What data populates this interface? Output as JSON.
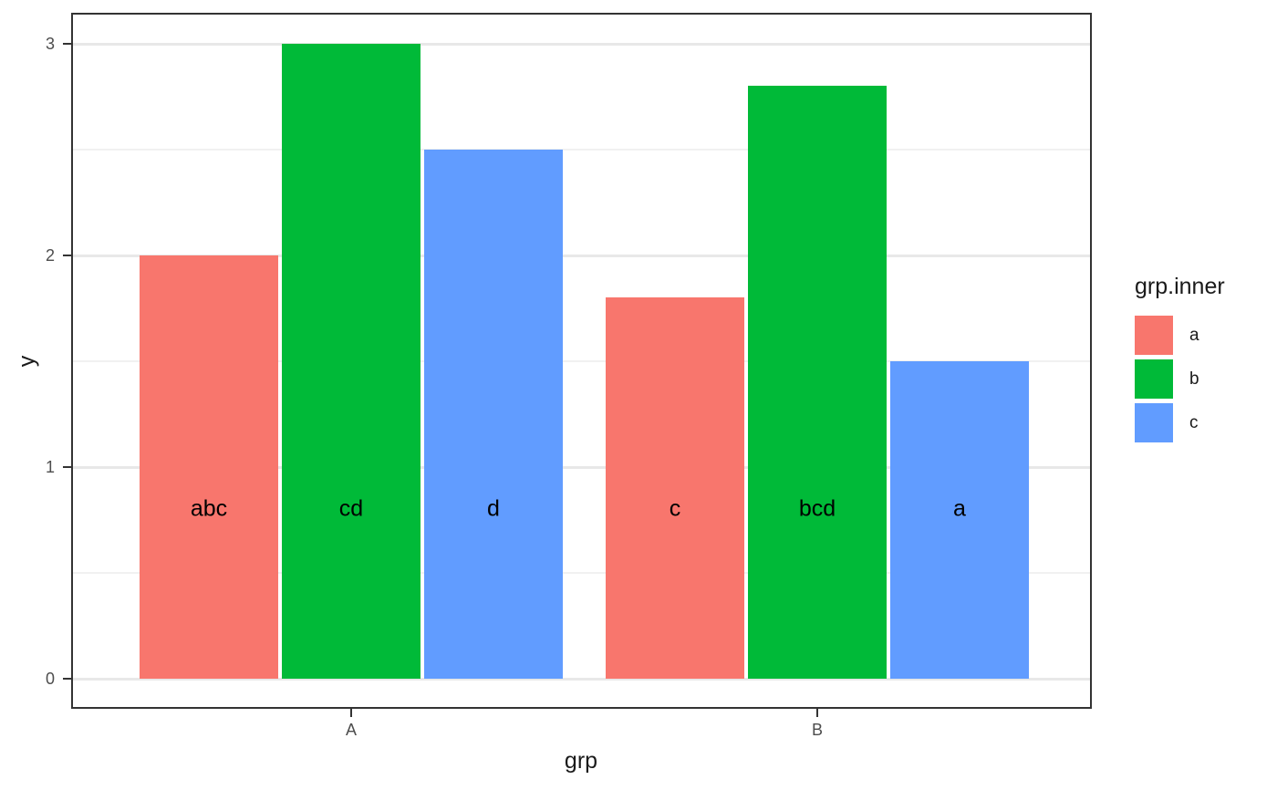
{
  "chart_data": {
    "type": "bar",
    "title": "",
    "xlabel": "grp",
    "ylabel": "y",
    "categories": [
      "A",
      "B"
    ],
    "series": [
      {
        "name": "a",
        "color": "#F8766D",
        "values": [
          2.0,
          1.8
        ],
        "bar_labels": [
          "abc",
          "c"
        ]
      },
      {
        "name": "b",
        "color": "#00BA38",
        "values": [
          3.0,
          2.8
        ],
        "bar_labels": [
          "cd",
          "bcd"
        ]
      },
      {
        "name": "c",
        "color": "#619CFF",
        "values": [
          2.5,
          1.5
        ],
        "bar_labels": [
          "d",
          "a"
        ]
      }
    ],
    "bar_label_y": 0.8,
    "y_ticks": [
      "0",
      "1",
      "2",
      "3"
    ],
    "y_minor_gridlines": [
      0.5,
      1.5,
      2.5
    ],
    "ylim": [
      -0.15,
      3.15
    ],
    "grid": "major+minor",
    "legend_position": "right",
    "legend": {
      "title": "grp.inner",
      "entries": [
        {
          "label": "a",
          "color": "#F8766D"
        },
        {
          "label": "b",
          "color": "#00BA38"
        },
        {
          "label": "c",
          "color": "#619CFF"
        }
      ]
    },
    "theme": {
      "panel_background": "#FFFFFF",
      "panel_border": "#333333",
      "grid_major_color": "#E8E8E8",
      "grid_minor_color": "#F1F1F1",
      "tick_color": "#333333",
      "tick_label_color": "#4D4D4D",
      "axis_title_color": "#1A1A1A",
      "bar_label_color": "#000000"
    }
  }
}
